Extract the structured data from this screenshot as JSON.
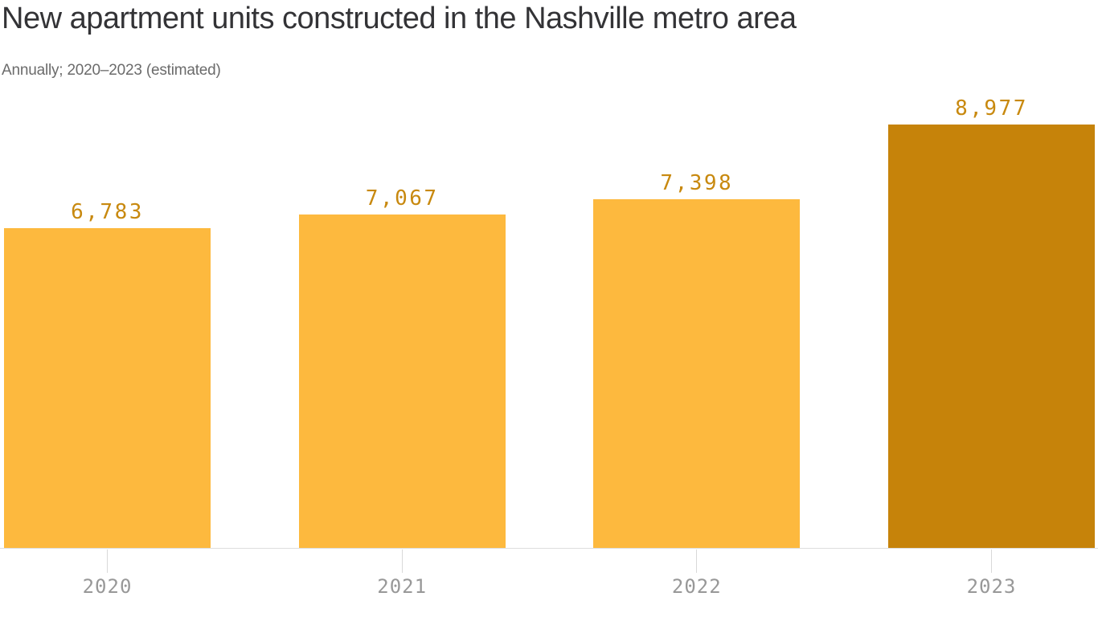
{
  "header": {
    "title": "New apartment units constructed in the Nashville metro area",
    "subtitle": "Annually; 2020–2023 (estimated)"
  },
  "chart_data": {
    "type": "bar",
    "title": "New apartment units constructed in the Nashville metro area",
    "subtitle": "Annually; 2020–2023 (estimated)",
    "categories": [
      "2020",
      "2021",
      "2022",
      "2023"
    ],
    "values": [
      6783,
      7067,
      7398,
      8977
    ],
    "value_labels": [
      "6,783",
      "7,067",
      "7,398",
      "8,977"
    ],
    "xlabel": "",
    "ylabel": "",
    "ylim": [
      0,
      9400
    ],
    "grid": false,
    "legend": false,
    "highlight_index": 3,
    "colors": {
      "bar_default": "#FDB93E",
      "bar_highlight": "#C6830A",
      "bar_colors": [
        "#FDB93E",
        "#FDB93E",
        "#FDB93E",
        "#C6830A"
      ],
      "value_label": "#C8890F",
      "axis_line": "#DDDDDD",
      "tick": "#D9D9D9",
      "category_label": "#989898",
      "title": "#333336",
      "subtitle": "#6B6B6B"
    }
  }
}
